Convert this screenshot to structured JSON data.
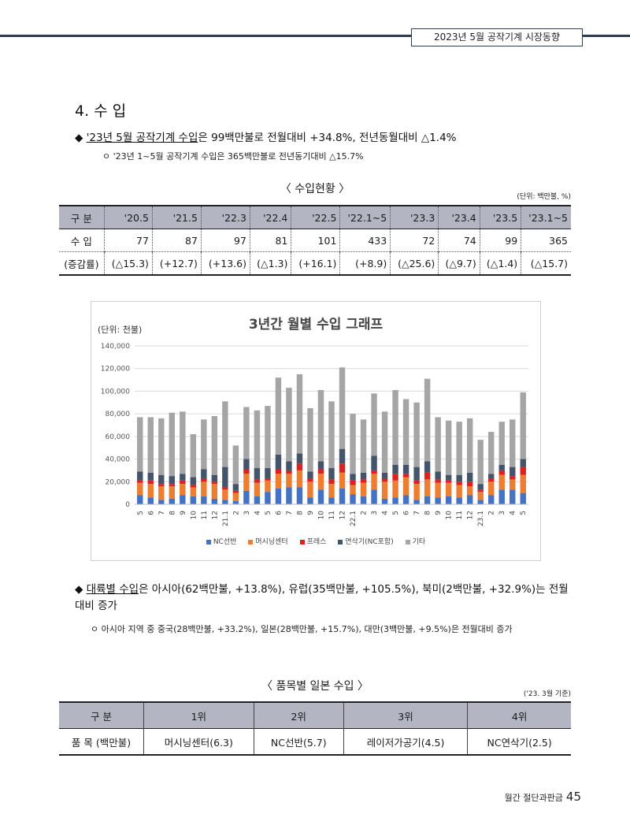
{
  "header": {
    "title": "2023년 5월 공작기계 시장동향"
  },
  "section": {
    "title": "4. 수 입"
  },
  "bullet1": {
    "marker": "◆",
    "lead": "'23년 5월 공작기계 수입",
    "rest": "은 99백만불로 전월대비 +34.8%, 전년동월대비 △1.4%"
  },
  "bullet2": {
    "marker": "ㅇ",
    "text": "'23년 1~5월 공작기계 수입은 365백만불로 전년동기대비 △15.7%"
  },
  "table1": {
    "caption": "〈 수입현황 〉",
    "unit": "(단위: 백만불, %)",
    "headers": [
      "구 분",
      "'20.5",
      "'21.5",
      "'22.3",
      "'22.4",
      "'22.5",
      "'22.1~5",
      "'23.3",
      "'23.4",
      "'23.5",
      "'23.1~5"
    ],
    "rows": [
      [
        "수 입",
        "77",
        "87",
        "97",
        "81",
        "101",
        "433",
        "72",
        "74",
        "99",
        "365"
      ],
      [
        "(증감률)",
        "(△15.3)",
        "(+12.7)",
        "(+13.6)",
        "(△1.3)",
        "(+16.1)",
        "(+8.9)",
        "(△25.6)",
        "(△9.7)",
        "(△1.4)",
        "(△15.7)"
      ]
    ]
  },
  "chart_data": {
    "type": "bar",
    "stacked": true,
    "title": "3년간 월별 수입 그래프",
    "ylabel": "(단위: 천불)",
    "ylim": [
      0,
      140000
    ],
    "yticks": [
      0,
      20000,
      40000,
      60000,
      80000,
      100000,
      120000,
      140000
    ],
    "yticklabels": [
      "0",
      "20,000",
      "40,000",
      "60,000",
      "80,000",
      "100,000",
      "120,000",
      "140,000"
    ],
    "grid": true,
    "legend_position": "bottom",
    "categories": [
      "5",
      "6",
      "7",
      "8",
      "9",
      "10",
      "11",
      "12",
      "21.1",
      "2",
      "3",
      "4",
      "5",
      "6",
      "7",
      "8",
      "9",
      "10",
      "11",
      "12",
      "22.1",
      "2",
      "3",
      "4",
      "5",
      "6",
      "7",
      "8",
      "9",
      "10",
      "11",
      "12",
      "23.1",
      "2",
      "3",
      "4",
      "5"
    ],
    "series": [
      {
        "name": "NC선반",
        "color": "#4472c4",
        "values": [
          8000,
          6000,
          4000,
          5000,
          8000,
          7000,
          7000,
          5000,
          4000,
          3000,
          12000,
          7000,
          11000,
          14000,
          15000,
          15000,
          6000,
          13000,
          6000,
          14000,
          9000,
          7000,
          13000,
          5000,
          6000,
          8000,
          4000,
          7000,
          6000,
          7000,
          6000,
          8000,
          4000,
          8000,
          13000,
          13000,
          10000
        ]
      },
      {
        "name": "머시닝센터",
        "color": "#ed7d31",
        "values": [
          11000,
          12000,
          12000,
          11000,
          10000,
          8000,
          13000,
          13000,
          9000,
          7000,
          15000,
          12000,
          10000,
          13000,
          12000,
          15000,
          14000,
          14000,
          12000,
          14000,
          8000,
          12000,
          14000,
          15000,
          15000,
          16000,
          14000,
          15000,
          13000,
          12000,
          11000,
          8000,
          7000,
          12000,
          13000,
          9000,
          16000
        ]
      },
      {
        "name": "프레스",
        "color": "#e02020",
        "values": [
          2000,
          3000,
          2000,
          2000,
          3000,
          2000,
          3000,
          2000,
          2000,
          2000,
          4000,
          3000,
          2000,
          4000,
          3000,
          6000,
          3000,
          4000,
          4000,
          8000,
          4000,
          3000,
          3000,
          3000,
          6000,
          3000,
          3000,
          6000,
          3000,
          2000,
          3000,
          4000,
          2000,
          3000,
          4000,
          3000,
          7000
        ]
      },
      {
        "name": "연삭기(NC포함)",
        "color": "#44546a",
        "values": [
          8000,
          7000,
          8000,
          7000,
          6000,
          7000,
          8000,
          6000,
          18000,
          6000,
          9000,
          10000,
          9000,
          13000,
          8000,
          9000,
          6000,
          7000,
          10000,
          13000,
          6000,
          6000,
          13000,
          5000,
          8000,
          8000,
          12000,
          10000,
          7000,
          5000,
          6000,
          8000,
          5000,
          4000,
          5000,
          8000,
          7000
        ]
      },
      {
        "name": "기타",
        "color": "#a5a5a5",
        "values": [
          48000,
          49000,
          50000,
          56000,
          55000,
          38000,
          44000,
          52000,
          58000,
          34000,
          46000,
          51000,
          55000,
          68000,
          65000,
          70000,
          56000,
          63000,
          59000,
          72000,
          53000,
          47000,
          55000,
          54000,
          66000,
          58000,
          57000,
          73000,
          48000,
          48000,
          47000,
          48000,
          39000,
          37000,
          38000,
          42000,
          59000
        ]
      }
    ]
  },
  "legend": [
    "NC선반",
    "머시닝센터",
    "프레스",
    "연삭기(NC포함)",
    "기타"
  ],
  "bullet3": {
    "marker": "◆",
    "lead": "대륙별 수입",
    "rest": "은 아시아(62백만불, +13.8%), 유럽(35백만불, +105.5%), 북미(2백만불, +32.9%)는 전월 대비 증가"
  },
  "bullet4": {
    "marker": "ㅇ",
    "text": "아시아 지역 중 중국(28백만불, +33.2%), 일본(28백만불, +15.7%), 대만(3백만불, +9.5%)은 전월대비 증가"
  },
  "table2": {
    "caption": "〈 품목별 일본 수입 〉",
    "unit": "('23. 3월 기준)",
    "headers": [
      "구 분",
      "1위",
      "2위",
      "3위",
      "4위"
    ],
    "rows": [
      [
        "품 목 (백만불)",
        "머시닝센터(6.3)",
        "NC선반(5.7)",
        "레이저가공기(4.5)",
        "NC연삭기(2.5)"
      ]
    ]
  },
  "footer": {
    "label": "월간 절단과판금",
    "page": "45"
  }
}
